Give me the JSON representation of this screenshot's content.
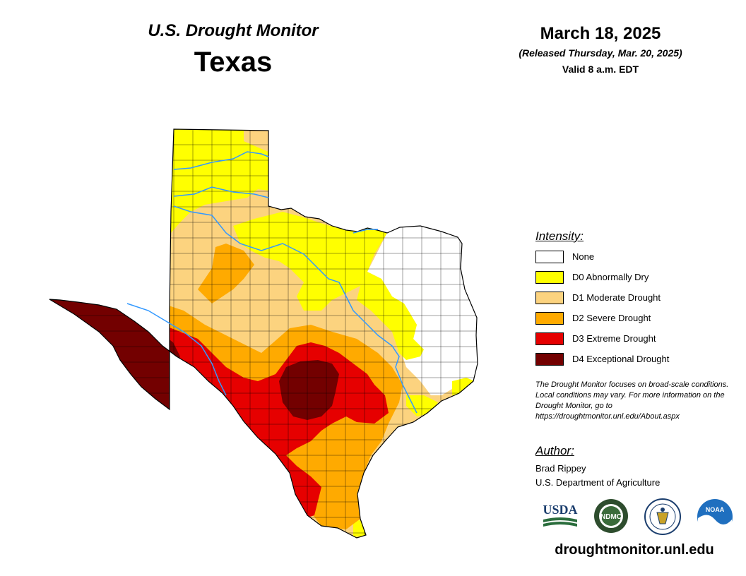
{
  "header": {
    "subtitle": "U.S. Drought Monitor",
    "title": "Texas",
    "date": "March 18, 2025",
    "released": "(Released Thursday, Mar. 20, 2025)",
    "valid": "Valid 8 a.m. EDT"
  },
  "legend": {
    "title": "Intensity:",
    "items": [
      {
        "label": "None",
        "color": "#ffffff"
      },
      {
        "label": "D0 Abnormally Dry",
        "color": "#ffff00"
      },
      {
        "label": "D1 Moderate Drought",
        "color": "#fcd37f"
      },
      {
        "label": "D2 Severe Drought",
        "color": "#ffaa00"
      },
      {
        "label": "D3 Extreme Drought",
        "color": "#e60000"
      },
      {
        "label": "D4 Exceptional Drought",
        "color": "#730000"
      }
    ]
  },
  "note": "The Drought Monitor focuses on broad-scale conditions. Local conditions may vary. For more information on the Drought Monitor, go to https://droughtmonitor.unl.edu/About.aspx",
  "author": {
    "title": "Author:",
    "name": "Brad Rippey",
    "organization": "U.S. Department of Agriculture"
  },
  "logos": [
    {
      "name": "usda-logo",
      "text": "USDA"
    },
    {
      "name": "ndmc-logo",
      "text": "NDMC"
    },
    {
      "name": "doc-seal-logo",
      "text": ""
    },
    {
      "name": "noaa-logo",
      "text": "NOAA"
    }
  ],
  "footer_url": "droughtmonitor.unl.edu",
  "colors": {
    "river": "#3399ff",
    "county_border": "#000000"
  }
}
